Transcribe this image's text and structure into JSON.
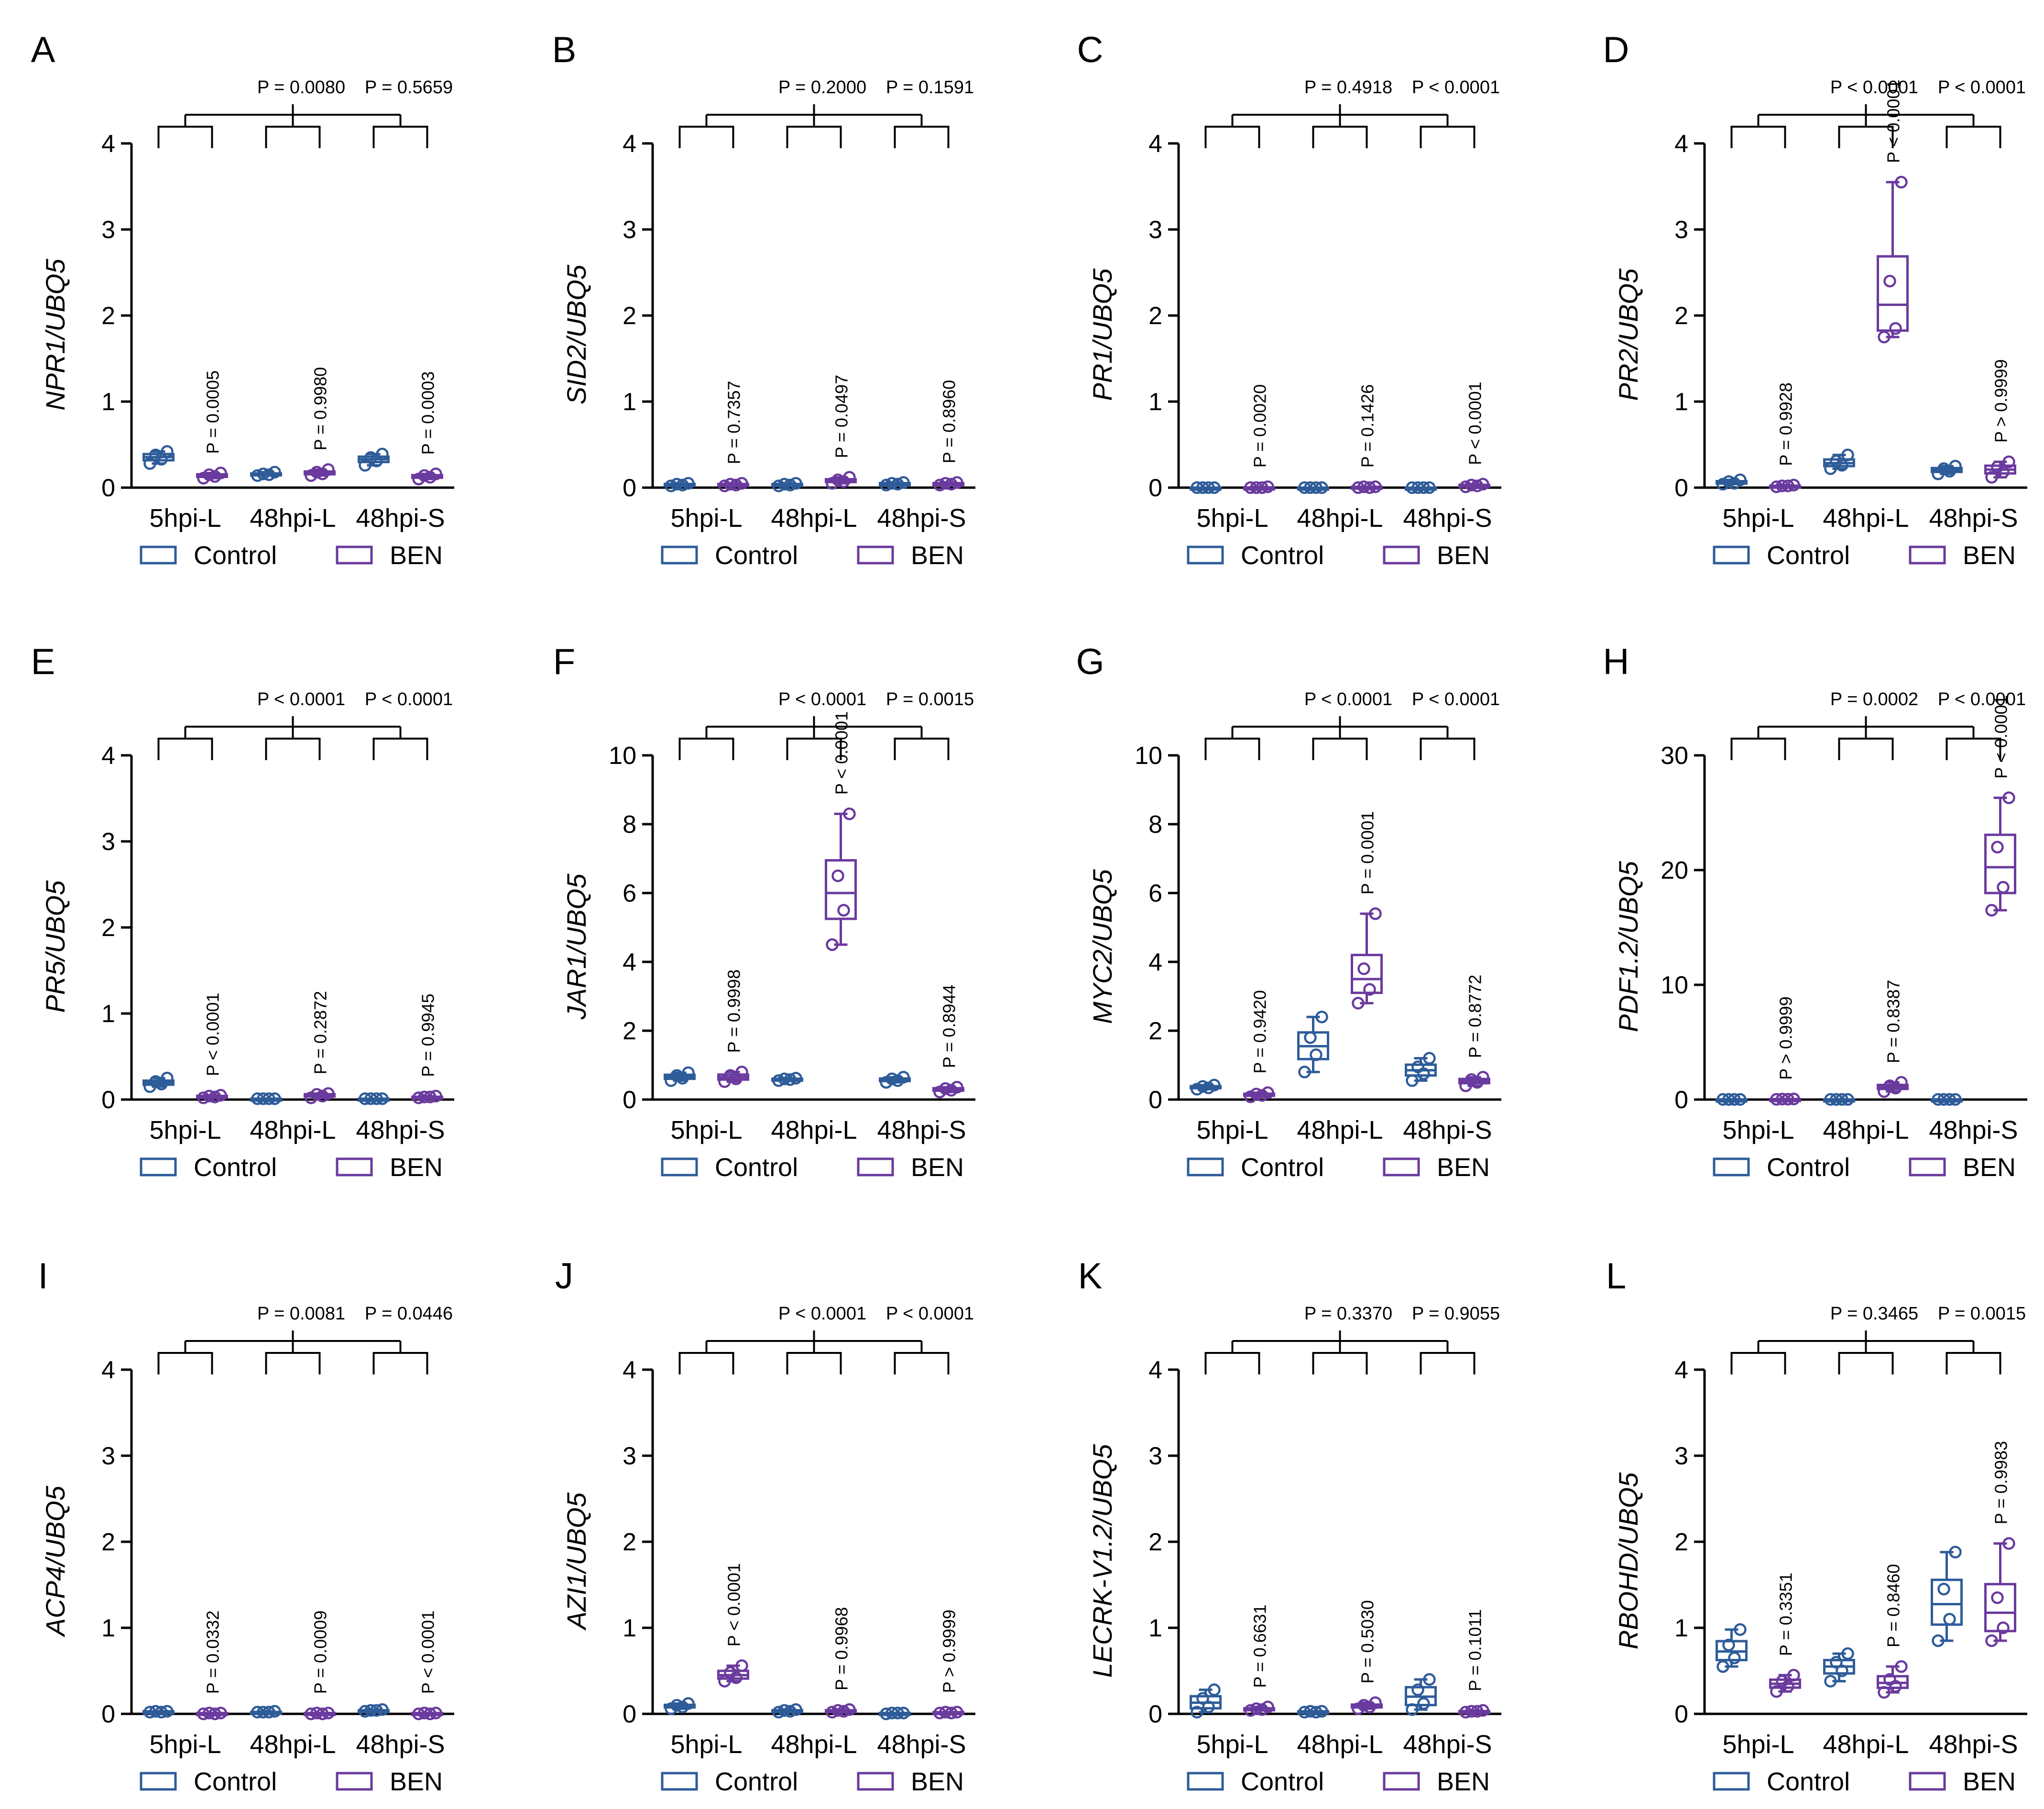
{
  "colors": {
    "control": "#2e5c99",
    "ben": "#6a3a9e",
    "axis": "#000000"
  },
  "chart_data": [
    {
      "panel": "A",
      "type": "box",
      "ylabel": "NPR1/UBQ5",
      "ylim": [
        0,
        4
      ],
      "yticks": [
        "0",
        "1",
        "2",
        "3",
        "4"
      ],
      "categories": [
        "5hpi-L",
        "48hpi-L",
        "48hpi-S"
      ],
      "legend": [
        "Control",
        "BEN"
      ],
      "series": [
        {
          "name": "Control",
          "points": [
            [
              0.28,
              0.33,
              0.38,
              0.42
            ],
            [
              0.14,
              0.15,
              0.16,
              0.18
            ],
            [
              0.26,
              0.31,
              0.35,
              0.39
            ]
          ]
        },
        {
          "name": "BEN",
          "points": [
            [
              0.11,
              0.13,
              0.15,
              0.17
            ],
            [
              0.14,
              0.16,
              0.18,
              0.21
            ],
            [
              0.1,
              0.12,
              0.14,
              0.16
            ]
          ]
        }
      ],
      "pair_p": [
        "P = 0.0005",
        "P = 0.9980",
        "P = 0.0003"
      ],
      "group_p": [
        "P = 0.0080",
        "P = 0.5659"
      ]
    },
    {
      "panel": "B",
      "type": "box",
      "ylabel": "SID2/UBQ5",
      "ylim": [
        0,
        4
      ],
      "yticks": [
        "0",
        "1",
        "2",
        "3",
        "4"
      ],
      "categories": [
        "5hpi-L",
        "48hpi-L",
        "48hpi-S"
      ],
      "legend": [
        "Control",
        "BEN"
      ],
      "series": [
        {
          "name": "Control",
          "points": [
            [
              0.02,
              0.03,
              0.04,
              0.05
            ],
            [
              0.02,
              0.03,
              0.04,
              0.05
            ],
            [
              0.03,
              0.04,
              0.05,
              0.06
            ]
          ]
        },
        {
          "name": "BEN",
          "points": [
            [
              0.02,
              0.03,
              0.04,
              0.05
            ],
            [
              0.05,
              0.07,
              0.09,
              0.12
            ],
            [
              0.03,
              0.04,
              0.05,
              0.06
            ]
          ]
        }
      ],
      "pair_p": [
        "P = 0.7357",
        "P = 0.0497",
        "P = 0.8960"
      ],
      "group_p": [
        "P = 0.2000",
        "P = 0.1591"
      ]
    },
    {
      "panel": "C",
      "type": "box",
      "ylabel": "PR1/UBQ5",
      "ylim": [
        0,
        4
      ],
      "yticks": [
        "0",
        "1",
        "2",
        "3",
        "4"
      ],
      "categories": [
        "5hpi-L",
        "48hpi-L",
        "48hpi-S"
      ],
      "legend": [
        "Control",
        "BEN"
      ],
      "series": [
        {
          "name": "Control",
          "points": [
            [
              0.0,
              0.0,
              0.0,
              0.0
            ],
            [
              0.0,
              0.0,
              0.0,
              0.0
            ],
            [
              0.0,
              0.0,
              0.0,
              0.0
            ]
          ]
        },
        {
          "name": "BEN",
          "points": [
            [
              0.0,
              0.0,
              0.0,
              0.01
            ],
            [
              0.0,
              0.0,
              0.01,
              0.01
            ],
            [
              0.01,
              0.02,
              0.03,
              0.04
            ]
          ]
        }
      ],
      "pair_p": [
        "P = 0.0020",
        "P = 0.1426",
        "P < 0.0001"
      ],
      "group_p": [
        "P = 0.4918",
        "P < 0.0001"
      ]
    },
    {
      "panel": "D",
      "type": "box",
      "ylabel": "PR2/UBQ5",
      "ylim": [
        0,
        4
      ],
      "yticks": [
        "0",
        "1",
        "2",
        "3",
        "4"
      ],
      "categories": [
        "5hpi-L",
        "48hpi-L",
        "48hpi-S"
      ],
      "legend": [
        "Control",
        "BEN"
      ],
      "series": [
        {
          "name": "Control",
          "points": [
            [
              0.04,
              0.05,
              0.07,
              0.09
            ],
            [
              0.22,
              0.26,
              0.31,
              0.38
            ],
            [
              0.16,
              0.19,
              0.22,
              0.25
            ]
          ]
        },
        {
          "name": "BEN",
          "points": [
            [
              0.01,
              0.02,
              0.02,
              0.03
            ],
            [
              1.75,
              1.85,
              2.4,
              3.55
            ],
            [
              0.12,
              0.18,
              0.24,
              0.3
            ]
          ]
        }
      ],
      "pair_p": [
        "P = 0.9928",
        "P < 0.0001",
        "P > 0.9999"
      ],
      "group_p": [
        "P < 0.0001",
        "P < 0.0001"
      ]
    },
    {
      "panel": "E",
      "type": "box",
      "ylabel": "PR5/UBQ5",
      "ylim": [
        0,
        4
      ],
      "yticks": [
        "0",
        "1",
        "2",
        "3",
        "4"
      ],
      "categories": [
        "5hpi-L",
        "48hpi-L",
        "48hpi-S"
      ],
      "legend": [
        "Control",
        "BEN"
      ],
      "series": [
        {
          "name": "Control",
          "points": [
            [
              0.15,
              0.18,
              0.21,
              0.25
            ],
            [
              0.01,
              0.01,
              0.01,
              0.01
            ],
            [
              0.01,
              0.01,
              0.01,
              0.01
            ]
          ]
        },
        {
          "name": "BEN",
          "points": [
            [
              0.02,
              0.03,
              0.04,
              0.05
            ],
            [
              0.02,
              0.04,
              0.06,
              0.07
            ],
            [
              0.02,
              0.03,
              0.03,
              0.04
            ]
          ]
        }
      ],
      "pair_p": [
        "P < 0.0001",
        "P = 0.2872",
        "P = 0.9945"
      ],
      "group_p": [
        "P < 0.0001",
        "P < 0.0001"
      ]
    },
    {
      "panel": "F",
      "type": "box",
      "ylabel": "JAR1/UBQ5",
      "ylim": [
        0,
        10
      ],
      "yticks": [
        "0",
        "2",
        "4",
        "6",
        "8",
        "10"
      ],
      "categories": [
        "5hpi-L",
        "48hpi-L",
        "48hpi-S"
      ],
      "legend": [
        "Control",
        "BEN"
      ],
      "series": [
        {
          "name": "Control",
          "points": [
            [
              0.55,
              0.62,
              0.7,
              0.78
            ],
            [
              0.55,
              0.58,
              0.6,
              0.62
            ],
            [
              0.5,
              0.55,
              0.6,
              0.65
            ]
          ]
        },
        {
          "name": "BEN",
          "points": [
            [
              0.52,
              0.6,
              0.7,
              0.8
            ],
            [
              4.5,
              5.5,
              6.5,
              8.3
            ],
            [
              0.22,
              0.27,
              0.32,
              0.36
            ]
          ]
        }
      ],
      "pair_p": [
        "P = 0.9998",
        "P < 0.0001",
        "P = 0.8944"
      ],
      "group_p": [
        "P < 0.0001",
        "P = 0.0015"
      ]
    },
    {
      "panel": "G",
      "type": "box",
      "ylabel": "MYC2/UBQ5",
      "ylim": [
        0,
        10
      ],
      "yticks": [
        "0",
        "2",
        "4",
        "6",
        "8",
        "10"
      ],
      "categories": [
        "5hpi-L",
        "48hpi-L",
        "48hpi-S"
      ],
      "legend": [
        "Control",
        "BEN"
      ],
      "series": [
        {
          "name": "Control",
          "points": [
            [
              0.3,
              0.34,
              0.38,
              0.42
            ],
            [
              0.8,
              1.3,
              1.8,
              2.4
            ],
            [
              0.55,
              0.75,
              0.95,
              1.2
            ]
          ]
        },
        {
          "name": "BEN",
          "points": [
            [
              0.08,
              0.12,
              0.16,
              0.2
            ],
            [
              2.8,
              3.2,
              3.8,
              5.4
            ],
            [
              0.4,
              0.5,
              0.58,
              0.65
            ]
          ]
        }
      ],
      "pair_p": [
        "P = 0.9420",
        "P = 0.0001",
        "P = 0.8772"
      ],
      "group_p": [
        "P < 0.0001",
        "P < 0.0001"
      ]
    },
    {
      "panel": "H",
      "type": "box",
      "ylabel": "PDF1.2/UBQ5",
      "ylim": [
        0,
        30
      ],
      "yticks": [
        "0",
        "10",
        "20",
        "30"
      ],
      "categories": [
        "5hpi-L",
        "48hpi-L",
        "48hpi-S"
      ],
      "legend": [
        "Control",
        "BEN"
      ],
      "series": [
        {
          "name": "Control",
          "points": [
            [
              0.01,
              0.01,
              0.01,
              0.01
            ],
            [
              0.01,
              0.01,
              0.01,
              0.01
            ],
            [
              0.01,
              0.01,
              0.01,
              0.01
            ]
          ]
        },
        {
          "name": "BEN",
          "points": [
            [
              0.02,
              0.03,
              0.04,
              0.05
            ],
            [
              0.7,
              1.0,
              1.2,
              1.5
            ],
            [
              16.5,
              18.5,
              22.0,
              26.3
            ]
          ]
        }
      ],
      "pair_p": [
        "P > 0.9999",
        "P = 0.8387",
        "P < 0.0001"
      ],
      "group_p": [
        "P = 0.0002",
        "P < 0.0001"
      ]
    },
    {
      "panel": "I",
      "type": "box",
      "ylabel": "ACP4/UBQ5",
      "ylim": [
        0,
        4
      ],
      "yticks": [
        "0",
        "1",
        "2",
        "3",
        "4"
      ],
      "categories": [
        "5hpi-L",
        "48hpi-L",
        "48hpi-S"
      ],
      "legend": [
        "Control",
        "BEN"
      ],
      "series": [
        {
          "name": "Control",
          "points": [
            [
              0.02,
              0.02,
              0.03,
              0.03
            ],
            [
              0.02,
              0.02,
              0.02,
              0.03
            ],
            [
              0.03,
              0.04,
              0.04,
              0.05
            ]
          ]
        },
        {
          "name": "BEN",
          "points": [
            [
              0.0,
              0.0,
              0.01,
              0.01
            ],
            [
              0.0,
              0.0,
              0.01,
              0.01
            ],
            [
              0.0,
              0.0,
              0.01,
              0.01
            ]
          ]
        }
      ],
      "pair_p": [
        "P = 0.0332",
        "P = 0.0009",
        "P < 0.0001"
      ],
      "group_p": [
        "P = 0.0081",
        "P = 0.0446"
      ]
    },
    {
      "panel": "J",
      "type": "box",
      "ylabel": "AZI1/UBQ5",
      "ylim": [
        0,
        4
      ],
      "yticks": [
        "0",
        "1",
        "2",
        "3",
        "4"
      ],
      "categories": [
        "5hpi-L",
        "48hpi-L",
        "48hpi-S"
      ],
      "legend": [
        "Control",
        "BEN"
      ],
      "series": [
        {
          "name": "Control",
          "points": [
            [
              0.06,
              0.08,
              0.1,
              0.12
            ],
            [
              0.02,
              0.03,
              0.04,
              0.05
            ],
            [
              0.0,
              0.01,
              0.01,
              0.01
            ]
          ]
        },
        {
          "name": "BEN",
          "points": [
            [
              0.38,
              0.42,
              0.48,
              0.56
            ],
            [
              0.02,
              0.03,
              0.04,
              0.05
            ],
            [
              0.01,
              0.01,
              0.02,
              0.02
            ]
          ]
        }
      ],
      "pair_p": [
        "P < 0.0001",
        "P = 0.9968",
        "P > 0.9999"
      ],
      "group_p": [
        "P < 0.0001",
        "P < 0.0001"
      ]
    },
    {
      "panel": "K",
      "type": "box",
      "ylabel": "LECRK-V1.2/UBQ5",
      "ylim": [
        0,
        4
      ],
      "yticks": [
        "0",
        "1",
        "2",
        "3",
        "4"
      ],
      "categories": [
        "5hpi-L",
        "48hpi-L",
        "48hpi-S"
      ],
      "legend": [
        "Control",
        "BEN"
      ],
      "series": [
        {
          "name": "Control",
          "points": [
            [
              0.02,
              0.08,
              0.18,
              0.28
            ],
            [
              0.02,
              0.02,
              0.03,
              0.03
            ],
            [
              0.05,
              0.12,
              0.28,
              0.4
            ]
          ]
        },
        {
          "name": "BEN",
          "points": [
            [
              0.04,
              0.05,
              0.06,
              0.08
            ],
            [
              0.06,
              0.08,
              0.1,
              0.13
            ],
            [
              0.02,
              0.03,
              0.03,
              0.04
            ]
          ]
        }
      ],
      "pair_p": [
        "P = 0.6631",
        "P = 0.5030",
        "P = 0.1011"
      ],
      "group_p": [
        "P = 0.3370",
        "P = 0.9055"
      ]
    },
    {
      "panel": "L",
      "type": "box",
      "ylabel": "RBOHD/UBQ5",
      "ylim": [
        0,
        4
      ],
      "yticks": [
        "0",
        "1",
        "2",
        "3",
        "4"
      ],
      "categories": [
        "5hpi-L",
        "48hpi-L",
        "48hpi-S"
      ],
      "legend": [
        "Control",
        "BEN"
      ],
      "series": [
        {
          "name": "Control",
          "points": [
            [
              0.55,
              0.65,
              0.8,
              0.98
            ],
            [
              0.38,
              0.5,
              0.6,
              0.7
            ],
            [
              0.85,
              1.1,
              1.45,
              1.88
            ]
          ]
        },
        {
          "name": "BEN",
          "points": [
            [
              0.26,
              0.32,
              0.38,
              0.45
            ],
            [
              0.25,
              0.32,
              0.4,
              0.55
            ],
            [
              0.85,
              1.0,
              1.35,
              1.98
            ]
          ]
        }
      ],
      "pair_p": [
        "P = 0.3351",
        "P = 0.8460",
        "P = 0.9983"
      ],
      "group_p": [
        "P = 0.3465",
        "P = 0.0015"
      ]
    }
  ]
}
